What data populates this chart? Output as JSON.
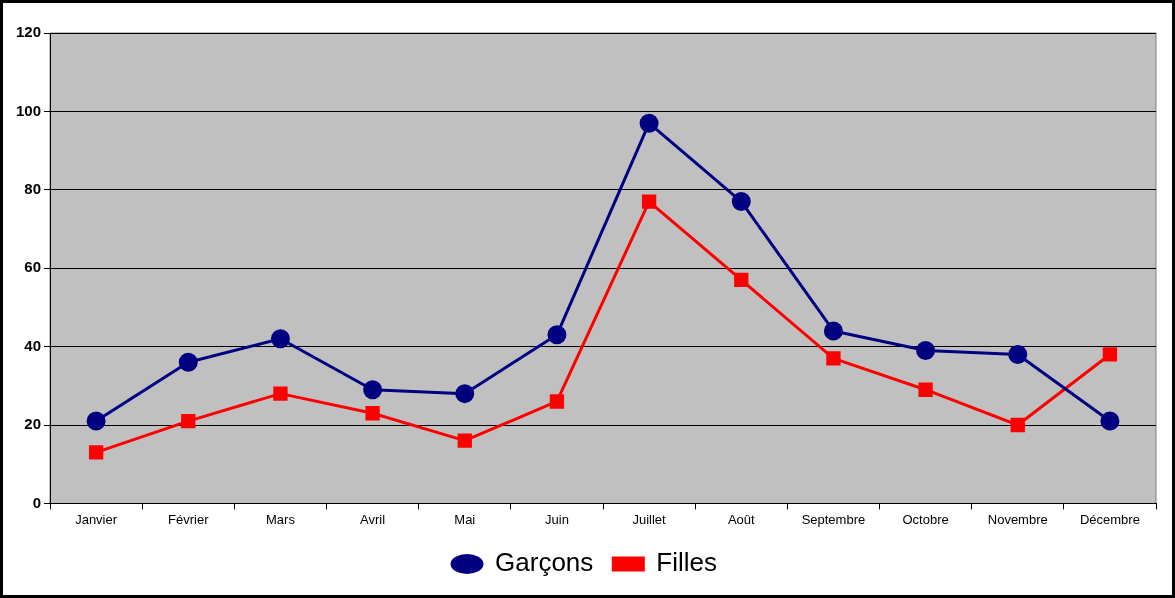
{
  "chart_data": {
    "type": "line",
    "categories": [
      "Janvier",
      "Février",
      "Mars",
      "Avril",
      "Mai",
      "Juin",
      "Juillet",
      "Août",
      "Septembre",
      "Octobre",
      "Novembre",
      "Décembre"
    ],
    "series": [
      {
        "name": "Garçons",
        "color": "#000080",
        "marker": "circle",
        "values": [
          21,
          36,
          42,
          29,
          28,
          43,
          97,
          77,
          44,
          39,
          38,
          21
        ]
      },
      {
        "name": "Filles",
        "color": "#ff0000",
        "marker": "square",
        "values": [
          13,
          21,
          28,
          23,
          16,
          26,
          77,
          57,
          37,
          29,
          20,
          38
        ]
      }
    ],
    "ylim": [
      0,
      120
    ],
    "yticks": [
      0,
      20,
      40,
      60,
      80,
      100,
      120
    ],
    "grid": "y",
    "legend": "bottom",
    "line_style": "solid"
  }
}
